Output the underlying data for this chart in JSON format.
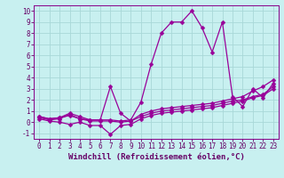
{
  "xlabel": "Windchill (Refroidissement éolien,°C)",
  "xlim": [
    -0.5,
    23.5
  ],
  "ylim": [
    -1.5,
    10.5
  ],
  "xticks": [
    0,
    1,
    2,
    3,
    4,
    5,
    6,
    7,
    8,
    9,
    10,
    11,
    12,
    13,
    14,
    15,
    16,
    17,
    18,
    19,
    20,
    21,
    22,
    23
  ],
  "yticks": [
    -1,
    0,
    1,
    2,
    3,
    4,
    5,
    6,
    7,
    8,
    9,
    10
  ],
  "background_color": "#c8f0f0",
  "grid_color": "#a8d8d8",
  "line_color": "#990099",
  "lines": [
    {
      "x": [
        0,
        1,
        2,
        3,
        4,
        5,
        6,
        7,
        8,
        9,
        10,
        11,
        12,
        13,
        14,
        15,
        16,
        17,
        18,
        19,
        20,
        21,
        22,
        23
      ],
      "y": [
        0.5,
        0.3,
        0.4,
        0.6,
        0.3,
        0.2,
        0.2,
        0.2,
        0.1,
        0.2,
        1.8,
        5.2,
        8.0,
        9.0,
        9.0,
        10.0,
        8.5,
        6.3,
        9.0,
        2.3,
        1.4,
        3.0,
        2.2,
        3.5
      ]
    },
    {
      "x": [
        0,
        1,
        2,
        3,
        4,
        5,
        6,
        7,
        8,
        9,
        10,
        11,
        12,
        13,
        14,
        15,
        16,
        17,
        18,
        19,
        20,
        21,
        22,
        23
      ],
      "y": [
        0.5,
        0.3,
        0.4,
        0.8,
        0.5,
        0.2,
        0.2,
        3.2,
        0.8,
        0.1,
        0.7,
        1.0,
        1.2,
        1.3,
        1.4,
        1.5,
        1.6,
        1.7,
        1.9,
        2.1,
        2.3,
        2.8,
        3.2,
        3.8
      ]
    },
    {
      "x": [
        0,
        1,
        2,
        3,
        4,
        5,
        6,
        7,
        8,
        9,
        10,
        11,
        12,
        13,
        14,
        15,
        16,
        17,
        18,
        19,
        20,
        21,
        22,
        23
      ],
      "y": [
        0.4,
        0.2,
        0.3,
        0.7,
        0.3,
        0.1,
        0.1,
        0.1,
        0.0,
        0.1,
        0.5,
        0.8,
        1.0,
        1.1,
        1.2,
        1.3,
        1.4,
        1.5,
        1.7,
        1.9,
        2.0,
        2.3,
        2.5,
        3.2
      ]
    },
    {
      "x": [
        0,
        1,
        2,
        3,
        4,
        5,
        6,
        7,
        8,
        9,
        10,
        11,
        12,
        13,
        14,
        15,
        16,
        17,
        18,
        19,
        20,
        21,
        22,
        23
      ],
      "y": [
        0.3,
        0.1,
        0.0,
        -0.2,
        0.0,
        -0.3,
        -0.3,
        -1.1,
        -0.3,
        -0.2,
        0.3,
        0.6,
        0.8,
        0.9,
        1.0,
        1.1,
        1.2,
        1.3,
        1.5,
        1.7,
        1.9,
        2.2,
        2.4,
        3.0
      ]
    }
  ],
  "tick_font_size": 5.5,
  "label_font_size": 6.5,
  "marker_size": 2.5,
  "linewidth": 0.9
}
